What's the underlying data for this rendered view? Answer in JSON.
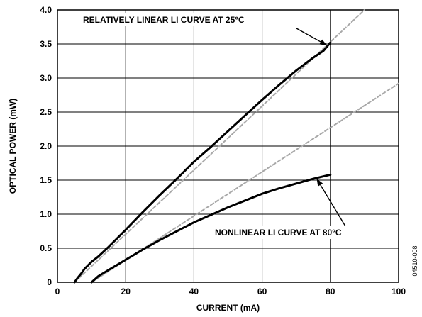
{
  "chart_data": {
    "type": "line",
    "xlabel": "CURRENT (mA)",
    "ylabel": "OPTICAL POWER (mW)",
    "xlim": [
      0,
      100
    ],
    "ylim": [
      0,
      4.0
    ],
    "x_ticks": [
      0,
      20,
      40,
      60,
      80,
      100
    ],
    "y_ticks": [
      "0",
      "0.5",
      "1.0",
      "1.5",
      "2.0",
      "2.5",
      "3.0",
      "3.5",
      "4.0"
    ],
    "grid": true,
    "legend": "none",
    "series": [
      {
        "style": "solid",
        "color": "#000000",
        "x": [
          5,
          6,
          7,
          8,
          10,
          12,
          15,
          20,
          25,
          30,
          35,
          40,
          45,
          50,
          55,
          60,
          65,
          70,
          75,
          78,
          80
        ],
        "y": [
          0.0,
          0.07,
          0.13,
          0.2,
          0.3,
          0.38,
          0.52,
          0.77,
          1.03,
          1.28,
          1.52,
          1.77,
          1.99,
          2.22,
          2.45,
          2.68,
          2.9,
          3.11,
          3.3,
          3.4,
          3.52
        ]
      },
      {
        "style": "dashed",
        "color": "#a8a8a8",
        "x": [
          5,
          90
        ],
        "y": [
          0.0,
          4.0
        ]
      },
      {
        "style": "solid",
        "color": "#000000",
        "x": [
          10,
          12,
          15,
          20,
          25,
          30,
          35,
          40,
          45,
          50,
          55,
          60,
          65,
          70,
          75,
          80
        ],
        "y": [
          0.0,
          0.09,
          0.18,
          0.33,
          0.48,
          0.62,
          0.75,
          0.88,
          0.99,
          1.1,
          1.2,
          1.3,
          1.38,
          1.45,
          1.52,
          1.58
        ]
      },
      {
        "style": "dashed",
        "color": "#a8a8a8",
        "x": [
          10,
          100
        ],
        "y": [
          0.0,
          2.92
        ]
      }
    ],
    "annotations": [
      {
        "text": "RELATIVELY LINEAR LI CURVE AT 25°C",
        "point": [
          79,
          3.48
        ]
      },
      {
        "text": "NONLINEAR LI CURVE AT 80°C",
        "point": [
          76,
          1.52
        ]
      }
    ]
  },
  "figure_id": "04510-008"
}
